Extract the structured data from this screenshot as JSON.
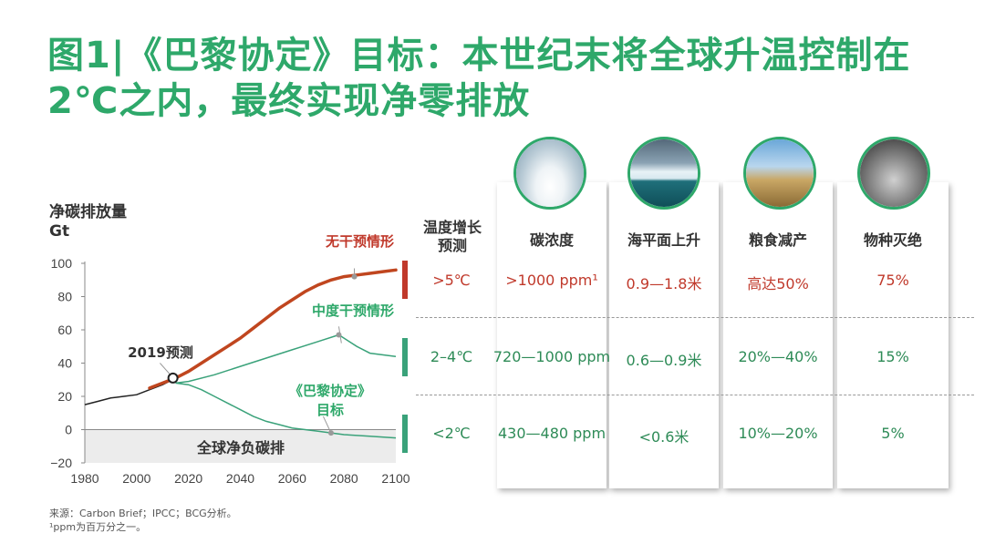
{
  "title": {
    "line1": "图1|《巴黎协定》目标：本世纪末将全球升温控制在",
    "line2": "2℃之内，最终实现净零排放"
  },
  "colors": {
    "title_green": "#2ea86a",
    "red": "#c0392b",
    "green": "#2e8b57",
    "teal": "#3aa27a"
  },
  "chart_data": {
    "type": "line",
    "ylabel": [
      "净碳排放量",
      "Gt"
    ],
    "xlim": [
      1980,
      2100
    ],
    "ylim": [
      -20,
      100
    ],
    "x_ticks": [
      1980,
      2000,
      2020,
      2040,
      2060,
      2080,
      2100
    ],
    "y_ticks": [
      100,
      80,
      60,
      40,
      20,
      0,
      -20
    ],
    "y_tick_labels": [
      "100",
      "80",
      "60",
      "40",
      "20",
      "0",
      "−20"
    ],
    "historical": {
      "x": [
        1980,
        1985,
        1990,
        1995,
        2000,
        2005,
        2010,
        2015
      ],
      "values": [
        15,
        17,
        19,
        20,
        21,
        24,
        27,
        31
      ]
    },
    "series": [
      {
        "name": "无干预情形",
        "x": [
          2005,
          2010,
          2015,
          2020,
          2025,
          2030,
          2035,
          2040,
          2045,
          2050,
          2055,
          2060,
          2065,
          2070,
          2075,
          2080,
          2085,
          2090,
          2095,
          2100
        ],
        "values": [
          25,
          28,
          31,
          35,
          40,
          45,
          50,
          55,
          61,
          67,
          73,
          78,
          83,
          87,
          90,
          92,
          93,
          94,
          95,
          96
        ]
      },
      {
        "name": "中度干预情形",
        "x": [
          2015,
          2020,
          2030,
          2040,
          2050,
          2060,
          2070,
          2078,
          2085,
          2090,
          2100
        ],
        "values": [
          28,
          29,
          33,
          38,
          43,
          48,
          53,
          57,
          50,
          46,
          44
        ]
      },
      {
        "name": "《巴黎协定》目标",
        "x": [
          2015,
          2020,
          2025,
          2030,
          2035,
          2040,
          2045,
          2050,
          2055,
          2060,
          2065,
          2070,
          2075,
          2080,
          2090,
          2100
        ],
        "values": [
          28,
          27,
          24,
          20,
          16,
          12,
          8,
          5,
          3,
          1,
          0,
          -1,
          -2,
          -3,
          -4,
          -5
        ]
      }
    ],
    "annotations": {
      "no_intervention": "无干预情形",
      "moderate": "中度干预情形",
      "paris_line1": "《巴黎协定》",
      "paris_line2": "目标",
      "forecast_2019": "2019预测",
      "net_negative": "全球净负碳排"
    },
    "marker_2019": {
      "x": 2014,
      "y": 31
    },
    "points": [
      {
        "x": 2084,
        "y": 92
      },
      {
        "x": 2078,
        "y": 57
      },
      {
        "x": 2075,
        "y": -2
      }
    ]
  },
  "table": {
    "temp_header": "温度增长预测",
    "temp_rows": [
      ">5℃",
      "2–4℃",
      "<2℃"
    ],
    "columns": [
      {
        "header": "碳浓度",
        "values": [
          ">1000 ppm¹",
          "720—1000 ppm",
          "430—480 ppm"
        ],
        "photo": "clouds"
      },
      {
        "header": "海平面上升",
        "values": [
          "0.9—1.8米",
          "0.6—0.9米",
          "<0.6米"
        ],
        "photo": "iceberg"
      },
      {
        "header": "粮食减产",
        "values": [
          "高达50%",
          "20%—40%",
          "10%—20%"
        ],
        "photo": "wheat"
      },
      {
        "header": "物种灭绝",
        "values": [
          "75%",
          "15%",
          "5%"
        ],
        "photo": "animals"
      }
    ]
  },
  "footnotes": {
    "source": "来源：Carbon Brief；IPCC；BCG分析。",
    "ppm": "¹ppm为百万分之一。"
  }
}
